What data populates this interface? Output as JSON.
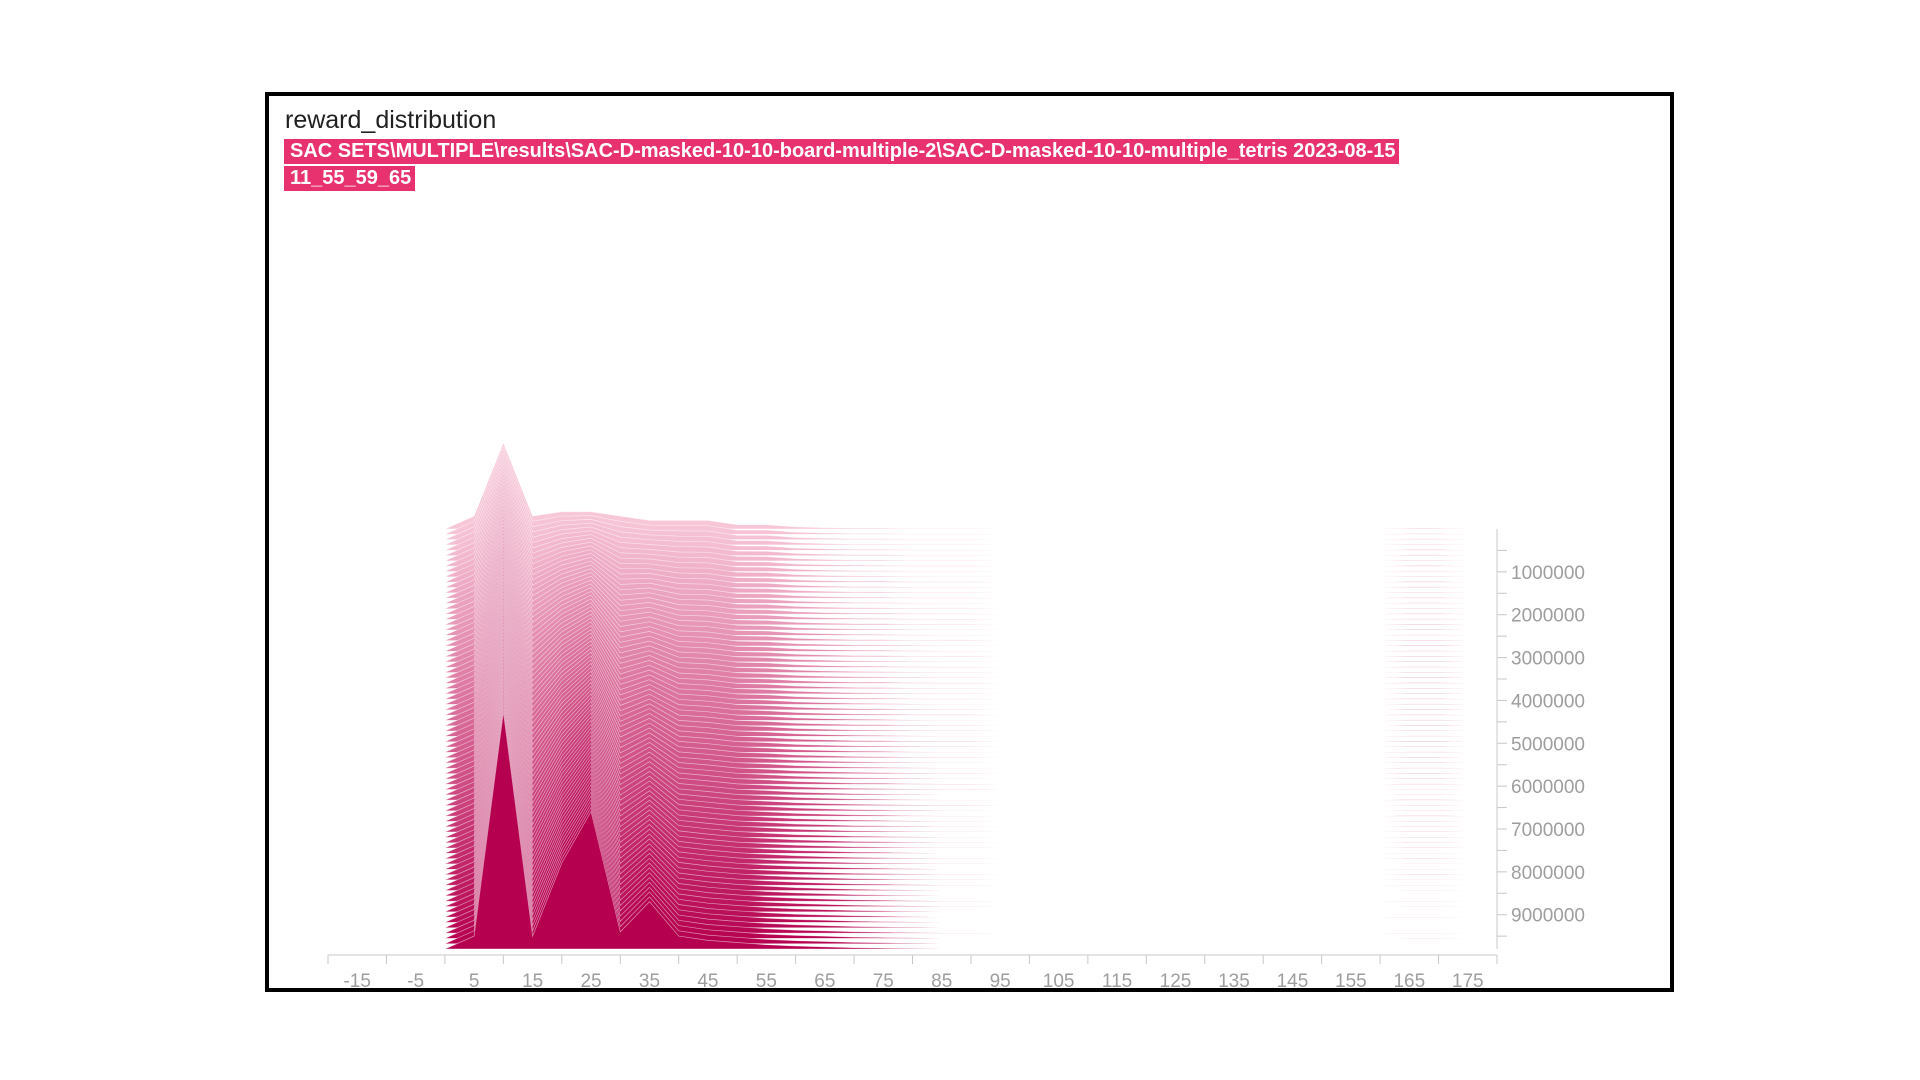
{
  "panel": {
    "title": "reward_distribution",
    "run_label": "SAC SETS\\MULTIPLE\\results\\SAC-D-masked-10-10-board-multiple-2\\SAC-D-masked-10-10-multiple_tetris 2023-08-15 11_55_59_65"
  },
  "colors": {
    "accent": "#e8326f",
    "recent_series": "#b5004f",
    "oldest_series": "#f7c7d8",
    "axis": "#c8c8c8",
    "tick_text": "#9e9e9e",
    "frame": "#000000"
  },
  "chart_data": {
    "type": "area",
    "mode": "offset",
    "title": "reward_distribution",
    "xlabel": "",
    "ylabel": "",
    "x_ticks": [
      -15,
      -5,
      5,
      15,
      25,
      35,
      45,
      55,
      65,
      75,
      85,
      95,
      105,
      115,
      125,
      135,
      145,
      155,
      165,
      175
    ],
    "xlim": [
      -20,
      180
    ],
    "step_ticks": [
      1000000,
      2000000,
      3000000,
      4000000,
      5000000,
      6000000,
      7000000,
      8000000,
      9000000
    ],
    "step_range": [
      0,
      9800000
    ],
    "bins": [
      -20,
      -15,
      -10,
      -5,
      0,
      5,
      10,
      15,
      20,
      25,
      30,
      35,
      40,
      45,
      50,
      55,
      60,
      65,
      70,
      75,
      80,
      85,
      90,
      95,
      100,
      105,
      110,
      115,
      120,
      125,
      130,
      135,
      140,
      145,
      150,
      155,
      160,
      165,
      170,
      175,
      180
    ],
    "distribution_first_step": {
      "step": 0,
      "counts": [
        0,
        0,
        0,
        0,
        0,
        0.03,
        0.2,
        0.03,
        0.04,
        0.04,
        0.03,
        0.02,
        0.02,
        0.02,
        0.01,
        0.01,
        0.005,
        0.003,
        0.002,
        0.002,
        0.001,
        0.001,
        0.001,
        0,
        0,
        0,
        0,
        0,
        0,
        0,
        0,
        0,
        0,
        0,
        0,
        0,
        0,
        0.002,
        0.002,
        0,
        0
      ]
    },
    "distribution_last_step": {
      "step": 9800000,
      "counts": [
        0,
        0,
        0,
        0,
        0,
        0.03,
        0.55,
        0.03,
        0.2,
        0.32,
        0.04,
        0.11,
        0.03,
        0.02,
        0.015,
        0.01,
        0.007,
        0.005,
        0.003,
        0.002,
        0.001,
        0,
        0,
        0,
        0,
        0,
        0,
        0,
        0,
        0,
        0,
        0,
        0,
        0,
        0,
        0,
        0,
        0,
        0,
        0,
        0
      ]
    }
  }
}
